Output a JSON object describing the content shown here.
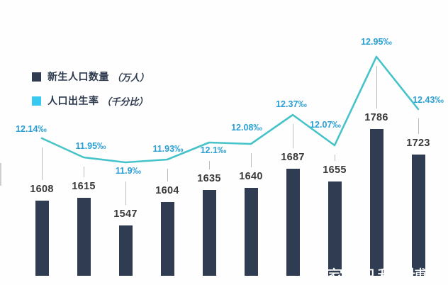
{
  "page": {
    "background": "#ffffff"
  },
  "legend": {
    "items": [
      {
        "name": "新生人口数量",
        "unit": "（万人）",
        "swatch_color": "#2e3b50"
      },
      {
        "name": "人口出生率",
        "unit": "（千分比）",
        "swatch_color": "#38c8f0"
      }
    ]
  },
  "chart_data": {
    "type": "bar+line",
    "title": "",
    "categories_shown": false,
    "axes": {
      "x_axis_shown": false,
      "y_axis_shown": false,
      "gridlines": false
    },
    "legend_position": "top-left",
    "series": [
      {
        "name": "新生人口数量（万人）",
        "type": "bar",
        "color": "#2f3c51",
        "values": [
          1608,
          1615,
          1547,
          1604,
          1635,
          1640,
          1687,
          1655,
          1786,
          1723
        ],
        "value_labels": [
          "1608",
          "1615",
          "1547",
          "1604",
          "1635",
          "1640",
          "1687",
          "1655",
          "1786",
          "1723"
        ]
      },
      {
        "name": "人口出生率（千分比）",
        "type": "line",
        "color": "#46c3c9",
        "values": [
          12.14,
          11.95,
          11.9,
          11.93,
          12.1,
          12.08,
          12.37,
          12.07,
          12.95,
          12.43
        ],
        "value_labels": [
          "12.14‰",
          "11.95‰",
          "11.9‰",
          "11.93‰",
          "12.1‰",
          "12.08‰",
          "12.37‰",
          "12.07‰",
          "12.95‰",
          "12.43‰"
        ]
      }
    ],
    "label_colors": {
      "bar_values": "#3a3a3a",
      "line_values": "#2a9fd4"
    },
    "connector_color": "#bcbcbc"
  },
  "watermark": {
    "color": "#ffffff",
    "fragments": [
      {
        "text": "家"
      },
      {
        "text": "日和"
      },
      {
        "text": "全博"
      }
    ]
  }
}
